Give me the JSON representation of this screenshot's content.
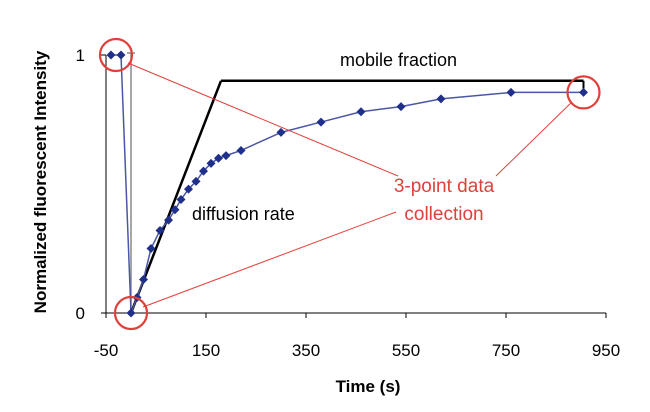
{
  "chart_data": {
    "type": "line",
    "xlabel": "Time (s)",
    "ylabel": "Normalized fluorescent Intensity",
    "xlim": [
      -50,
      950
    ],
    "ylim": [
      0,
      1
    ],
    "x_ticks": [
      "-50",
      "150",
      "350",
      "550",
      "750",
      "950"
    ],
    "x_tick_values": [
      -50,
      150,
      350,
      550,
      750,
      950
    ],
    "y_ticks": [
      "0",
      "1"
    ],
    "y_tick_values": [
      0,
      1
    ],
    "series": [
      {
        "color": "#1f2f8a",
        "x": [
          -40,
          -20,
          0,
          12,
          25,
          40,
          58,
          75,
          88,
          100,
          115,
          130,
          145,
          160,
          175,
          190,
          220,
          300,
          380,
          460,
          540,
          620,
          760,
          905
        ],
        "y": [
          1.0,
          1.0,
          0.0,
          0.06,
          0.13,
          0.25,
          0.32,
          0.36,
          0.4,
          0.44,
          0.48,
          0.51,
          0.55,
          0.58,
          0.6,
          0.61,
          0.63,
          0.7,
          0.74,
          0.78,
          0.8,
          0.83,
          0.855,
          0.855
        ]
      }
    ],
    "annotations": {
      "mobile_fraction": "mobile fraction",
      "diffusion_rate": "diffusion rate",
      "collection_line1": "3-point data",
      "collection_line2": "collection"
    },
    "colors": {
      "annotation_red": "#e0403a",
      "fit_line": "#000000",
      "data": "#1f2f8a"
    },
    "guide_lines": {
      "mobile_fraction_level": 0.9,
      "diffusion_line_start": [
        0,
        0
      ],
      "diffusion_line_end": [
        180,
        0.9
      ],
      "plateau_end_x": 905
    },
    "highlighted_points": [
      [
        -30,
        1.0
      ],
      [
        0,
        0.0
      ],
      [
        905,
        0.855
      ]
    ],
    "grid": false
  }
}
